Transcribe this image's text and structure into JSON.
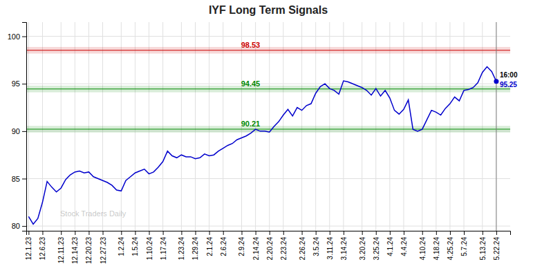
{
  "chart_data": {
    "type": "line",
    "title": "IYF Long Term Signals",
    "watermark": "Stock Traders Daily",
    "color": "#0000cc",
    "ylim": [
      79.5,
      101.5
    ],
    "yticks": [
      80,
      85,
      90,
      95,
      100
    ],
    "grid": true,
    "categories": [
      "12.1.23",
      null,
      null,
      "12.6.23",
      null,
      null,
      null,
      "12.11.23",
      null,
      null,
      "12.14.23",
      null,
      null,
      "12.20.23",
      null,
      null,
      "12.27.23",
      null,
      null,
      null,
      "1.2.24",
      null,
      null,
      "1.5.24",
      null,
      null,
      "1.10.24",
      null,
      null,
      "1.17.24",
      null,
      null,
      null,
      "1.23.24",
      null,
      null,
      "1.29.24",
      null,
      null,
      "2.1.24",
      null,
      null,
      "2.6.24",
      null,
      null,
      null,
      "2.9.24",
      null,
      null,
      "2.14.24",
      null,
      null,
      "2.20.24",
      null,
      null,
      "2.23.24",
      null,
      null,
      null,
      "2.26.24",
      null,
      null,
      "3.5.24",
      null,
      null,
      "3.11.24",
      null,
      null,
      "3.14.24",
      null,
      null,
      null,
      "3.20.24",
      null,
      null,
      "3.25.24",
      null,
      null,
      "4.1.24",
      null,
      null,
      "4.4.24",
      null,
      null,
      null,
      "4.10.24",
      null,
      null,
      "4.18.24",
      null,
      null,
      "4.25.24",
      null,
      null,
      "5.7.24",
      null,
      null,
      null,
      "5.13.24",
      null,
      null,
      "5.22.24"
    ],
    "values": [
      81.0,
      80.2,
      80.8,
      82.5,
      84.7,
      84.1,
      83.6,
      84.0,
      84.9,
      85.4,
      85.7,
      85.8,
      85.6,
      85.7,
      85.2,
      85.0,
      84.8,
      84.6,
      84.3,
      83.8,
      83.7,
      84.8,
      85.2,
      85.6,
      85.8,
      86.0,
      85.5,
      85.7,
      86.2,
      86.8,
      87.9,
      87.4,
      87.2,
      87.5,
      87.3,
      87.3,
      87.1,
      87.2,
      87.6,
      87.4,
      87.5,
      87.9,
      88.2,
      88.5,
      88.7,
      89.1,
      89.3,
      89.5,
      89.8,
      90.2,
      90.0,
      90.0,
      89.9,
      90.5,
      91.0,
      91.7,
      92.3,
      91.6,
      92.5,
      92.2,
      92.7,
      92.9,
      94.0,
      94.7,
      95.0,
      94.5,
      94.3,
      93.9,
      95.3,
      95.2,
      95.0,
      94.8,
      94.6,
      94.3,
      93.8,
      94.5,
      93.7,
      94.3,
      93.5,
      92.2,
      91.8,
      92.3,
      93.3,
      90.2,
      90.0,
      90.2,
      91.2,
      92.2,
      92.0,
      91.7,
      92.4,
      92.9,
      93.6,
      93.2,
      94.3,
      94.4,
      94.6,
      95.1,
      96.2,
      96.8,
      96.3,
      95.25
    ],
    "reference_lines": [
      {
        "value": 98.53,
        "label": "98.53",
        "color": "#cc0000",
        "band": 0.35
      },
      {
        "value": 94.45,
        "label": "94.45",
        "color": "#008800",
        "band": 0.35
      },
      {
        "value": 90.21,
        "label": "90.21",
        "color": "#008800",
        "band": 0.35
      }
    ],
    "end_labels": {
      "time": "16:00",
      "price": "95.25"
    }
  }
}
